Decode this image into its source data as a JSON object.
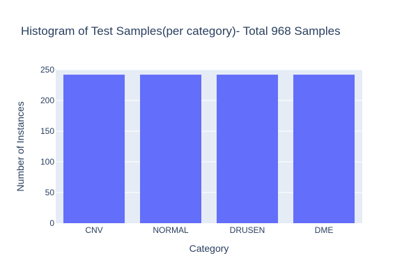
{
  "chart_data": {
    "type": "bar",
    "title": "Histogram of Test Samples(per category)- Total 968 Samples",
    "xlabel": "Category",
    "ylabel": "Number of Instances",
    "categories": [
      "CNV",
      "NORMAL",
      "DRUSEN",
      "DME"
    ],
    "values": [
      242,
      242,
      242,
      242
    ],
    "ylim": [
      0,
      250
    ],
    "yticks": [
      0,
      50,
      100,
      150,
      200,
      250
    ],
    "ytick_labels": [
      "0",
      "50",
      "100",
      "150",
      "200",
      "250"
    ],
    "grid": true,
    "colors": {
      "bar": "#636efa",
      "plot_background": "#e5ecf6",
      "grid": "#ffffff",
      "text": "#2a3f5f"
    }
  }
}
